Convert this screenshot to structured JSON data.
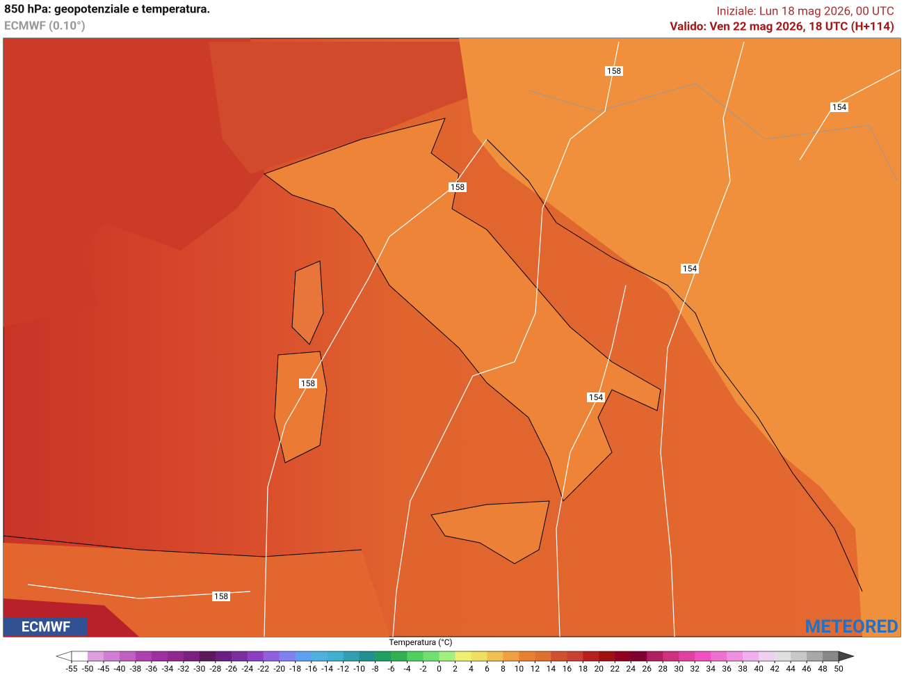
{
  "header": {
    "title": "850 hPa: geopotenziale e temperatura.",
    "model": "ECMWF (0.10°)",
    "init": "Iniziale: Lun 18 mag 2026, 00 UTC",
    "valid": "Valido: Ven 22 mag 2026, 18 UTC (H+114)"
  },
  "map": {
    "isohypse_labels": [
      158,
      154,
      158,
      154,
      158,
      154,
      158
    ]
  },
  "logos": {
    "left": "ECMWF",
    "right": "METEORED"
  },
  "legend": {
    "title": "Temperatura (°C)",
    "ticks": [
      -55,
      -50,
      -45,
      -40,
      -38,
      -36,
      -34,
      -32,
      -30,
      -28,
      -26,
      -24,
      -22,
      -20,
      -18,
      -16,
      -14,
      -12,
      -10,
      -8,
      -6,
      -4,
      -2,
      0,
      2,
      4,
      6,
      8,
      10,
      12,
      14,
      16,
      18,
      20,
      22,
      24,
      26,
      28,
      30,
      32,
      34,
      36,
      38,
      40,
      42,
      44,
      46,
      48,
      50
    ],
    "colors": [
      "#ffffff",
      "#dca0dc",
      "#d080d0",
      "#c060c0",
      "#b040b0",
      "#a030a0",
      "#902890",
      "#7a2080",
      "#5a1a5a",
      "#6a2080",
      "#7a30a0",
      "#8a40c0",
      "#9060e0",
      "#8080f0",
      "#60a0f0",
      "#50b0e0",
      "#40b0d0",
      "#30a0b0",
      "#209090",
      "#20a060",
      "#30b050",
      "#50d060",
      "#70e070",
      "#a0f080",
      "#f0f070",
      "#f0e060",
      "#f0c050",
      "#f0a040",
      "#e88030",
      "#e07030",
      "#d05030",
      "#c84030",
      "#b82020",
      "#a01010",
      "#900020",
      "#800030",
      "#b02060",
      "#d03080",
      "#e040a0",
      "#f050c0",
      "#f070d0",
      "#f090e0",
      "#f0b0f0",
      "#f0d0f0",
      "#e0e0e0",
      "#c8c8c8",
      "#a8a8a8",
      "#888888"
    ],
    "under_color": "#ffffff",
    "over_color": "#444444"
  }
}
